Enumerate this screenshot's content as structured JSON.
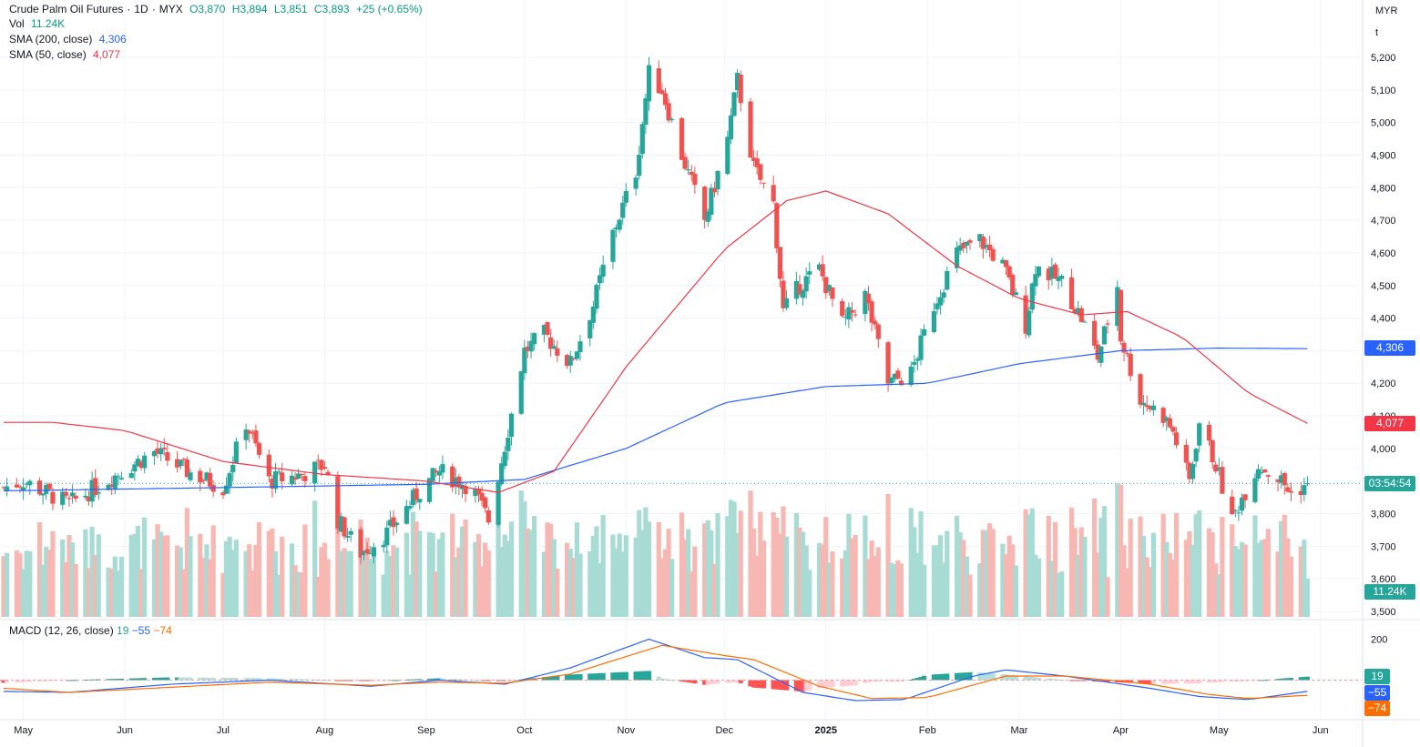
{
  "header": {
    "symbol": "Crude Palm Oil Futures",
    "interval": "1D",
    "exchange": "MYX",
    "open": "O3,870",
    "high": "H3,894",
    "low": "L3,851",
    "close": "C3,893",
    "change": "+25 (+0.65%)",
    "separator": "·"
  },
  "legends": {
    "vol_label": "Vol",
    "vol_value": "11.24K",
    "sma200_label": "SMA (200, close)",
    "sma200_value": "4,306",
    "sma50_label": "SMA (50, close)",
    "sma50_value": "4,077",
    "macd_label": "MACD (12, 26, close)",
    "macd_hist": "19",
    "macd_line": "−55",
    "macd_signal": "−74"
  },
  "price_scale": {
    "currency": "MYR",
    "unit": "t",
    "ticks": [
      "5,200",
      "5,100",
      "5,000",
      "4,900",
      "4,800",
      "4,700",
      "4,600",
      "4,500",
      "4,400",
      "4,300",
      "4,200",
      "4,100",
      "4,000",
      "3,900",
      "3,800",
      "3,700",
      "3,600",
      "3,500"
    ],
    "macd_ticks": [
      "200"
    ]
  },
  "price_tags": {
    "sma200": "4,306",
    "sma50": "4,077",
    "countdown": "03:54:54",
    "volume": "11.24K",
    "macd_hist": "19",
    "macd_line": "−55",
    "macd_signal": "−74"
  },
  "time_axis": [
    "May",
    "Jun",
    "Jul",
    "Aug",
    "Sep",
    "Oct",
    "Nov",
    "Dec",
    "2025",
    "Feb",
    "Mar",
    "Apr",
    "May",
    "Jun"
  ],
  "colors": {
    "up": "#26a69a",
    "down": "#ef5350",
    "sma200": "#2962ff",
    "sma50": "#f23645",
    "macd_line": "#2962ff",
    "signal_line": "#ff6d00",
    "grid": "#f0f3fa",
    "vol_up": "#a8dbd4",
    "vol_down": "#f7b7b3"
  },
  "chart_data": {
    "type": "candlestick",
    "title": "Crude Palm Oil Futures · 1D · MYX",
    "y_unit": "MYR/t",
    "ylim": [
      3480,
      5240
    ],
    "last_close": 3893,
    "close_anchors": [
      [
        "2024-04-25",
        3880
      ],
      [
        "2024-05-01",
        3900
      ],
      [
        "2024-05-15",
        3830
      ],
      [
        "2024-05-31",
        3930
      ],
      [
        "2024-06-10",
        3990
      ],
      [
        "2024-06-20",
        3930
      ],
      [
        "2024-07-01",
        3880
      ],
      [
        "2024-07-08",
        4080
      ],
      [
        "2024-07-15",
        3900
      ],
      [
        "2024-07-25",
        3920
      ],
      [
        "2024-08-01",
        3950
      ],
      [
        "2024-08-05",
        3780
      ],
      [
        "2024-08-12",
        3680
      ],
      [
        "2024-08-20",
        3740
      ],
      [
        "2024-08-30",
        3870
      ],
      [
        "2024-09-05",
        3930
      ],
      [
        "2024-09-15",
        3880
      ],
      [
        "2024-09-20",
        3780
      ],
      [
        "2024-09-25",
        4010
      ],
      [
        "2024-10-01",
        4300
      ],
      [
        "2024-10-07",
        4350
      ],
      [
        "2024-10-15",
        4260
      ],
      [
        "2024-10-22",
        4440
      ],
      [
        "2024-10-28",
        4660
      ],
      [
        "2024-11-04",
        4850
      ],
      [
        "2024-11-08",
        5150
      ],
      [
        "2024-11-12",
        5100
      ],
      [
        "2024-11-18",
        4900
      ],
      [
        "2024-11-25",
        4700
      ],
      [
        "2024-12-02",
        4950
      ],
      [
        "2024-12-05",
        5130
      ],
      [
        "2024-12-10",
        4860
      ],
      [
        "2024-12-16",
        4750
      ],
      [
        "2024-12-19",
        4420
      ],
      [
        "2024-12-24",
        4500
      ],
      [
        "2024-12-30",
        4550
      ],
      [
        "2025-01-06",
        4380
      ],
      [
        "2025-01-13",
        4470
      ],
      [
        "2025-01-20",
        4200
      ],
      [
        "2025-01-27",
        4230
      ],
      [
        "2025-02-03",
        4440
      ],
      [
        "2025-02-10",
        4600
      ],
      [
        "2025-02-17",
        4640
      ],
      [
        "2025-02-24",
        4560
      ],
      [
        "2025-03-03",
        4380
      ],
      [
        "2025-03-06",
        4560
      ],
      [
        "2025-03-14",
        4510
      ],
      [
        "2025-03-20",
        4400
      ],
      [
        "2025-03-25",
        4280
      ],
      [
        "2025-03-31",
        4500
      ],
      [
        "2025-04-01",
        4340
      ],
      [
        "2025-04-07",
        4150
      ],
      [
        "2025-04-14",
        4100
      ],
      [
        "2025-04-17",
        4050
      ],
      [
        "2025-04-22",
        3900
      ],
      [
        "2025-04-25",
        4080
      ],
      [
        "2025-04-30",
        3950
      ],
      [
        "2025-05-05",
        3780
      ],
      [
        "2025-05-08",
        3850
      ],
      [
        "2025-05-13",
        3950
      ],
      [
        "2025-05-20",
        3900
      ],
      [
        "2025-05-23",
        3860
      ],
      [
        "2025-05-28",
        3893
      ]
    ],
    "sma200": [
      [
        "2024-04-25",
        3870
      ],
      [
        "2024-07-01",
        3880
      ],
      [
        "2024-09-01",
        3890
      ],
      [
        "2024-10-01",
        3905
      ],
      [
        "2024-11-01",
        4000
      ],
      [
        "2024-12-01",
        4140
      ],
      [
        "2025-01-01",
        4190
      ],
      [
        "2025-02-01",
        4200
      ],
      [
        "2025-03-01",
        4260
      ],
      [
        "2025-04-01",
        4300
      ],
      [
        "2025-05-01",
        4308
      ],
      [
        "2025-05-28",
        4306
      ]
    ],
    "sma50": [
      [
        "2024-04-25",
        4080
      ],
      [
        "2024-05-10",
        4080
      ],
      [
        "2024-06-01",
        4055
      ],
      [
        "2024-07-01",
        3960
      ],
      [
        "2024-08-01",
        3920
      ],
      [
        "2024-09-01",
        3900
      ],
      [
        "2024-09-23",
        3865
      ],
      [
        "2024-10-10",
        3930
      ],
      [
        "2024-11-01",
        4250
      ],
      [
        "2024-12-01",
        4610
      ],
      [
        "2024-12-20",
        4760
      ],
      [
        "2025-01-01",
        4790
      ],
      [
        "2025-01-20",
        4720
      ],
      [
        "2025-02-10",
        4560
      ],
      [
        "2025-03-01",
        4460
      ],
      [
        "2025-03-20",
        4410
      ],
      [
        "2025-04-03",
        4420
      ],
      [
        "2025-04-20",
        4340
      ],
      [
        "2025-05-10",
        4170
      ],
      [
        "2025-05-28",
        4077
      ]
    ],
    "macd_line": [
      [
        "2024-04-25",
        -55
      ],
      [
        "2024-05-15",
        -60
      ],
      [
        "2024-06-15",
        -20
      ],
      [
        "2024-07-15",
        0
      ],
      [
        "2024-08-15",
        -30
      ],
      [
        "2024-09-05",
        0
      ],
      [
        "2024-09-25",
        -20
      ],
      [
        "2024-10-15",
        60
      ],
      [
        "2024-11-08",
        200
      ],
      [
        "2024-11-25",
        110
      ],
      [
        "2024-12-05",
        100
      ],
      [
        "2024-12-25",
        -60
      ],
      [
        "2025-01-10",
        -100
      ],
      [
        "2025-01-25",
        -95
      ],
      [
        "2025-02-15",
        20
      ],
      [
        "2025-02-25",
        50
      ],
      [
        "2025-03-15",
        20
      ],
      [
        "2025-04-10",
        -40
      ],
      [
        "2025-04-25",
        -80
      ],
      [
        "2025-05-10",
        -95
      ],
      [
        "2025-05-28",
        -55
      ]
    ],
    "signal_line": [
      [
        "2024-04-25",
        -40
      ],
      [
        "2024-05-15",
        -60
      ],
      [
        "2024-06-15",
        -35
      ],
      [
        "2024-07-15",
        -10
      ],
      [
        "2024-08-15",
        -25
      ],
      [
        "2024-09-05",
        -10
      ],
      [
        "2024-09-25",
        -15
      ],
      [
        "2024-10-15",
        30
      ],
      [
        "2024-11-12",
        170
      ],
      [
        "2024-12-01",
        120
      ],
      [
        "2024-12-10",
        100
      ],
      [
        "2024-12-30",
        -30
      ],
      [
        "2025-01-15",
        -90
      ],
      [
        "2025-02-01",
        -85
      ],
      [
        "2025-02-25",
        20
      ],
      [
        "2025-03-15",
        20
      ],
      [
        "2025-04-10",
        -20
      ],
      [
        "2025-04-28",
        -70
      ],
      [
        "2025-05-10",
        -90
      ],
      [
        "2025-05-28",
        -74
      ]
    ]
  }
}
